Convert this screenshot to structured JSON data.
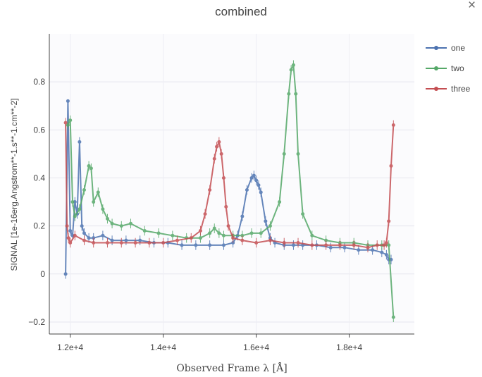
{
  "chart_data": {
    "type": "line",
    "title": "combined",
    "xlabel": "Observed Frame  λ  [Å]",
    "ylabel": "SIGNAL [1e-16erg.Angstrom**-1.s**-1.cm**-2]",
    "xlim": [
      11550,
      19400
    ],
    "ylim": [
      -0.25,
      1.0
    ],
    "x_ticks": [
      12000,
      14000,
      16000,
      18000
    ],
    "x_tick_labels": [
      "1.2e+4",
      "1.4e+4",
      "1.6e+4",
      "1.8e+4"
    ],
    "y_ticks": [
      -0.2,
      0,
      0.2,
      0.4,
      0.6,
      0.8
    ],
    "y_tick_labels": [
      "−0.2",
      "0",
      "0.2",
      "0.4",
      "0.6",
      "0.8"
    ],
    "grid": true,
    "legend_position": "top-right",
    "series": [
      {
        "name": "one",
        "color": "#4c72b0",
        "x": [
          11900,
          11950,
          12000,
          12050,
          12100,
          12150,
          12200,
          12250,
          12300,
          12400,
          12500,
          12700,
          12900,
          13200,
          13500,
          13800,
          14100,
          14400,
          14700,
          15000,
          15300,
          15500,
          15600,
          15700,
          15800,
          15900,
          15950,
          16000,
          16050,
          16100,
          16200,
          16300,
          16400,
          16600,
          16800,
          17000,
          17300,
          17600,
          17900,
          18200,
          18500,
          18700,
          18800,
          18850,
          18900
        ],
        "y": [
          0.0,
          0.72,
          0.18,
          0.16,
          0.3,
          0.25,
          0.55,
          0.2,
          0.17,
          0.15,
          0.15,
          0.16,
          0.14,
          0.14,
          0.14,
          0.13,
          0.13,
          0.12,
          0.12,
          0.12,
          0.12,
          0.13,
          0.16,
          0.24,
          0.35,
          0.4,
          0.41,
          0.39,
          0.37,
          0.34,
          0.22,
          0.15,
          0.13,
          0.12,
          0.12,
          0.12,
          0.12,
          0.11,
          0.11,
          0.1,
          0.1,
          0.09,
          0.08,
          0.06,
          0.06
        ]
      },
      {
        "name": "two",
        "color": "#55a868",
        "x": [
          11950,
          12000,
          12050,
          12100,
          12200,
          12300,
          12400,
          12450,
          12500,
          12600,
          12700,
          12800,
          12900,
          13100,
          13300,
          13600,
          13900,
          14200,
          14500,
          14800,
          15000,
          15100,
          15200,
          15300,
          15500,
          15700,
          15900,
          16100,
          16300,
          16500,
          16600,
          16700,
          16750,
          16800,
          16850,
          16900,
          17000,
          17200,
          17500,
          17800,
          18100,
          18400,
          18700,
          18850,
          18950
        ],
        "y": [
          0.62,
          0.64,
          0.3,
          0.24,
          0.27,
          0.35,
          0.45,
          0.44,
          0.3,
          0.34,
          0.27,
          0.23,
          0.21,
          0.2,
          0.21,
          0.18,
          0.17,
          0.16,
          0.15,
          0.15,
          0.17,
          0.19,
          0.17,
          0.16,
          0.16,
          0.16,
          0.17,
          0.17,
          0.2,
          0.3,
          0.5,
          0.75,
          0.85,
          0.87,
          0.75,
          0.5,
          0.25,
          0.16,
          0.14,
          0.13,
          0.13,
          0.12,
          0.12,
          0.12,
          -0.18
        ]
      },
      {
        "name": "three",
        "color": "#c44e52",
        "x": [
          11900,
          11930,
          11960,
          12000,
          12100,
          12300,
          12500,
          12800,
          13100,
          13400,
          13700,
          14000,
          14300,
          14600,
          14800,
          14900,
          15000,
          15100,
          15150,
          15200,
          15250,
          15300,
          15350,
          15400,
          15500,
          15700,
          16000,
          16300,
          16600,
          16900,
          17200,
          17500,
          17800,
          18100,
          18400,
          18600,
          18750,
          18800,
          18850,
          18900,
          18950
        ],
        "y": [
          0.63,
          0.2,
          0.15,
          0.13,
          0.16,
          0.14,
          0.13,
          0.13,
          0.13,
          0.13,
          0.13,
          0.13,
          0.14,
          0.15,
          0.18,
          0.25,
          0.35,
          0.48,
          0.53,
          0.55,
          0.5,
          0.4,
          0.28,
          0.2,
          0.15,
          0.14,
          0.13,
          0.14,
          0.13,
          0.13,
          0.12,
          0.12,
          0.12,
          0.12,
          0.11,
          0.12,
          0.12,
          0.13,
          0.22,
          0.45,
          0.62
        ]
      }
    ]
  },
  "ui": {
    "close_symbol": "×"
  }
}
